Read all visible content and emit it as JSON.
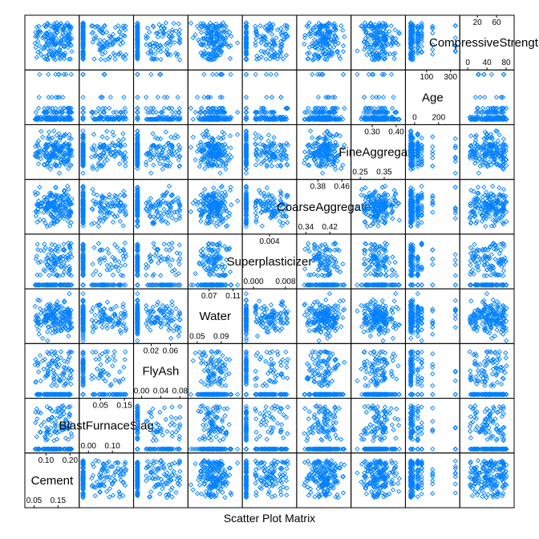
{
  "chart_data": {
    "type": "scatter",
    "xlabel": "Scatter Plot Matrix",
    "colors": {
      "point": "#0080ff",
      "frame": "#000000"
    },
    "variables": [
      {
        "name": "Cement",
        "ticks": [
          "0.05",
          "0.10",
          "0.15",
          "0.20"
        ],
        "range": [
          0.02,
          0.24
        ],
        "dist": "spread"
      },
      {
        "name": "BlastFurnaceSlag",
        "ticks": [
          "0.00",
          "0.05",
          "0.10",
          "0.15"
        ],
        "range": [
          -0.01,
          0.16
        ],
        "dist": "zeroheavy"
      },
      {
        "name": "FlyAsh",
        "ticks": [
          "0.00",
          "0.02",
          "0.04",
          "0.06",
          "0.08"
        ],
        "range": [
          -0.005,
          0.085
        ],
        "dist": "zeroheavy"
      },
      {
        "name": "Water",
        "ticks": [
          "0.05",
          "0.07",
          "0.09",
          "0.11"
        ],
        "range": [
          0.045,
          0.12
        ],
        "dist": "normal"
      },
      {
        "name": "Superplasticizer",
        "ticks": [
          "0.000",
          "0.004",
          "0.008"
        ],
        "range": [
          -0.0005,
          0.0105
        ],
        "dist": "zeroheavy"
      },
      {
        "name": "CoarseAggregate",
        "ticks": [
          "0.34",
          "0.38",
          "0.42",
          "0.46"
        ],
        "range": [
          0.32,
          0.48
        ],
        "dist": "normal"
      },
      {
        "name": "FineAggregate",
        "ticks": [
          "0.25",
          "0.30",
          "0.35",
          "0.40"
        ],
        "range": [
          0.22,
          0.42
        ],
        "dist": "normal"
      },
      {
        "name": "Age",
        "ticks": [
          "0",
          "100",
          "200",
          "300"
        ],
        "range": [
          -10,
          380
        ],
        "dist": "age"
      },
      {
        "name": "CompressiveStrength",
        "ticks": [
          "0",
          "20",
          "40",
          "60",
          "80"
        ],
        "range": [
          0,
          85
        ],
        "dist": "spread"
      }
    ]
  }
}
